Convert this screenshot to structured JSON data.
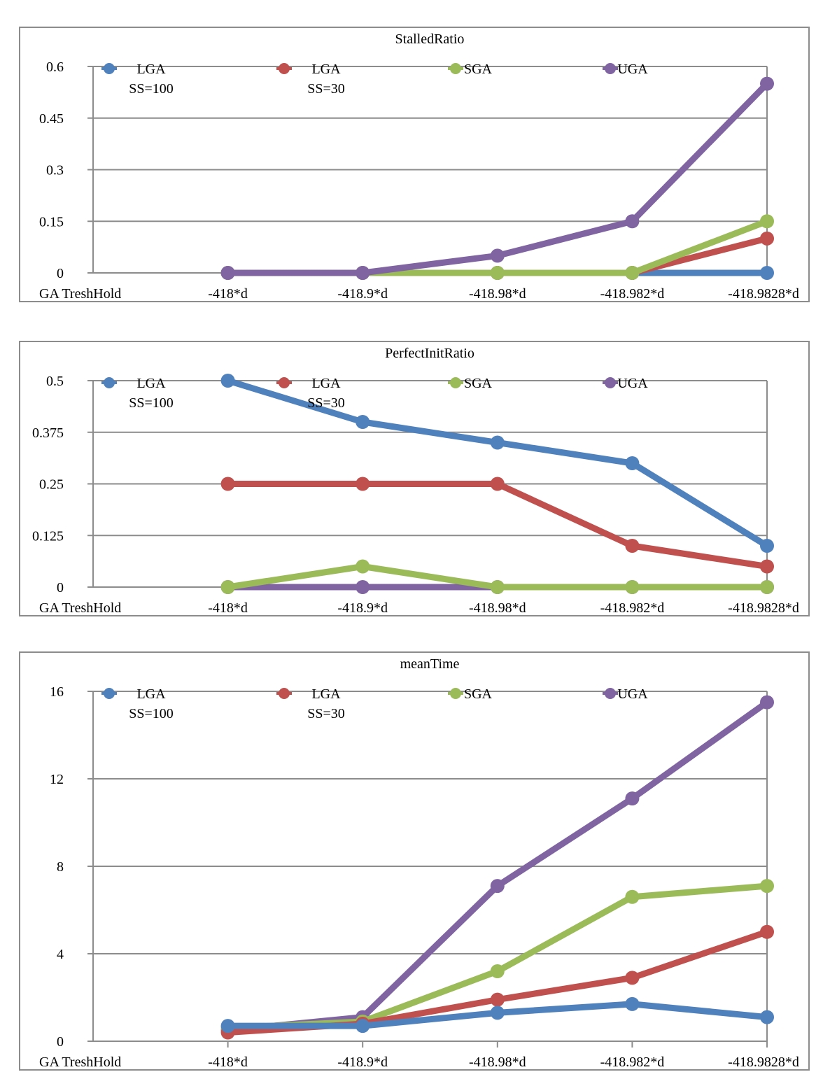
{
  "chart_data": [
    {
      "type": "line",
      "title": "StalledRatio",
      "category_label": "GA TreshHold",
      "categories": [
        "-418*d",
        "-418.9*d",
        "-418.98*d",
        "-418.982*d",
        "-418.9828*d"
      ],
      "ylim": [
        0,
        0.6
      ],
      "yticks": [
        "0",
        "0.15",
        "0.3",
        "0.45",
        "0.6"
      ],
      "grid": true,
      "legend_position": "top",
      "series": [
        {
          "name": "LGA SS=100",
          "label_lines": [
            "LGA",
            "SS=100"
          ],
          "color": "#4f81bd",
          "values": [
            0,
            0,
            0,
            0,
            0
          ]
        },
        {
          "name": "LGA SS=30",
          "label_lines": [
            "LGA",
            "SS=30"
          ],
          "color": "#c0504d",
          "values": [
            0,
            0,
            0,
            0,
            0.1
          ]
        },
        {
          "name": "SGA",
          "label_lines": [
            "SGA"
          ],
          "color": "#9bbb59",
          "values": [
            0,
            0,
            0,
            0,
            0.15
          ]
        },
        {
          "name": "UGA",
          "label_lines": [
            "UGA"
          ],
          "color": "#8064a2",
          "values": [
            0,
            0,
            0.05,
            0.15,
            0.55
          ]
        }
      ]
    },
    {
      "type": "line",
      "title": "PerfectInitRatio",
      "category_label": "GA TreshHold",
      "categories": [
        "-418*d",
        "-418.9*d",
        "-418.98*d",
        "-418.982*d",
        "-418.9828*d"
      ],
      "ylim": [
        0,
        0.5
      ],
      "yticks": [
        "0",
        "0.125",
        "0.25",
        "0.375",
        "0.5"
      ],
      "grid": true,
      "legend_position": "top",
      "series": [
        {
          "name": "UGA",
          "label_lines": [
            "UGA"
          ],
          "color": "#8064a2",
          "values": [
            0,
            0,
            0,
            0,
            0
          ]
        },
        {
          "name": "SGA",
          "label_lines": [
            "SGA"
          ],
          "color": "#9bbb59",
          "values": [
            0,
            0.05,
            0,
            0,
            0
          ]
        },
        {
          "name": "LGA SS=30",
          "label_lines": [
            "LGA",
            "SS=30"
          ],
          "color": "#c0504d",
          "values": [
            0.25,
            0.25,
            0.25,
            0.1,
            0.05
          ]
        },
        {
          "name": "LGA SS=100",
          "label_lines": [
            "LGA",
            "SS=100"
          ],
          "color": "#4f81bd",
          "values": [
            0.5,
            0.4,
            0.35,
            0.3,
            0.1
          ]
        }
      ],
      "legend_order": [
        3,
        2,
        1,
        0
      ]
    },
    {
      "type": "line",
      "title": "meanTime",
      "category_label": "GA TreshHold",
      "categories": [
        "-418*d",
        "-418.9*d",
        "-418.98*d",
        "-418.982*d",
        "-418.9828*d"
      ],
      "ylim": [
        0,
        16
      ],
      "yticks": [
        "0",
        "4",
        "8",
        "12",
        "16"
      ],
      "grid": true,
      "legend_position": "top",
      "series": [
        {
          "name": "UGA",
          "label_lines": [
            "UGA"
          ],
          "color": "#8064a2",
          "values": [
            0.5,
            1.1,
            7.1,
            11.1,
            15.5
          ]
        },
        {
          "name": "SGA",
          "label_lines": [
            "SGA"
          ],
          "color": "#9bbb59",
          "values": [
            0.6,
            0.9,
            3.2,
            6.6,
            7.1
          ]
        },
        {
          "name": "LGA SS=30",
          "label_lines": [
            "LGA",
            "SS=30"
          ],
          "color": "#c0504d",
          "values": [
            0.4,
            0.8,
            1.9,
            2.9,
            5.0
          ]
        },
        {
          "name": "LGA SS=100",
          "label_lines": [
            "LGA",
            "SS=100"
          ],
          "color": "#4f81bd",
          "values": [
            0.7,
            0.7,
            1.3,
            1.7,
            1.1
          ]
        }
      ],
      "legend_order": [
        3,
        2,
        1,
        0
      ]
    }
  ]
}
